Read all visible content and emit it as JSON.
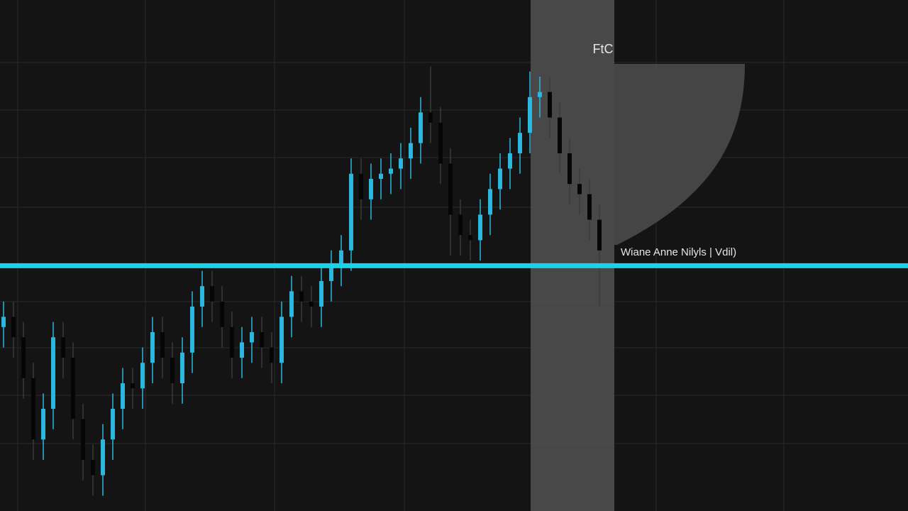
{
  "chart_data": {
    "type": "candlestick",
    "ylim": [
      0,
      100
    ],
    "up_color": "#2bb7de",
    "down_color": "#060606",
    "open": [
      36,
      38,
      34,
      26,
      14,
      20,
      34,
      30,
      18,
      10,
      7,
      14,
      20,
      25,
      24,
      29,
      35,
      30,
      25,
      31,
      40,
      44,
      41,
      36,
      30,
      33,
      35,
      32,
      29,
      38,
      43,
      41,
      40,
      45,
      48,
      51,
      66,
      61,
      65,
      66,
      67,
      69,
      72,
      78,
      76,
      68,
      58,
      54,
      53,
      58,
      63,
      67,
      70,
      74,
      81,
      82,
      77,
      70,
      64,
      62,
      57
    ],
    "high": [
      41,
      41,
      37,
      29,
      23,
      37,
      37,
      33,
      21,
      13,
      17,
      23,
      28,
      28,
      32,
      38,
      38,
      33,
      34,
      43,
      47,
      47,
      44,
      39,
      36,
      38,
      38,
      35,
      41,
      46,
      46,
      44,
      48,
      51,
      54,
      69,
      69,
      68,
      69,
      70,
      72,
      75,
      81,
      87,
      79,
      71,
      61,
      57,
      61,
      66,
      70,
      73,
      77,
      86,
      85,
      85,
      80,
      73,
      67,
      65,
      60
    ],
    "low": [
      32,
      30,
      22,
      10,
      10,
      16,
      26,
      14,
      6,
      3,
      3,
      10,
      16,
      20,
      20,
      25,
      26,
      21,
      21,
      27,
      36,
      37,
      32,
      26,
      26,
      29,
      28,
      25,
      25,
      34,
      37,
      36,
      36,
      41,
      44,
      47,
      57,
      57,
      61,
      62,
      63,
      65,
      68,
      72,
      64,
      50,
      50,
      49,
      49,
      54,
      59,
      63,
      66,
      70,
      77,
      73,
      66,
      60,
      58,
      53,
      40
    ],
    "close": [
      38,
      34,
      26,
      14,
      20,
      34,
      30,
      18,
      10,
      7,
      14,
      20,
      25,
      24,
      29,
      35,
      30,
      25,
      31,
      40,
      44,
      41,
      36,
      30,
      33,
      35,
      32,
      29,
      38,
      43,
      41,
      40,
      45,
      48,
      51,
      66,
      61,
      65,
      66,
      67,
      69,
      72,
      78,
      76,
      68,
      58,
      54,
      53,
      58,
      63,
      67,
      70,
      74,
      81,
      82,
      77,
      70,
      64,
      62,
      57,
      51
    ],
    "reference_line": {
      "value": 48,
      "color": "#19d3e6",
      "label": "Wiane Anne Nilyls | Vdil)"
    },
    "highlight_label": "FtC"
  }
}
